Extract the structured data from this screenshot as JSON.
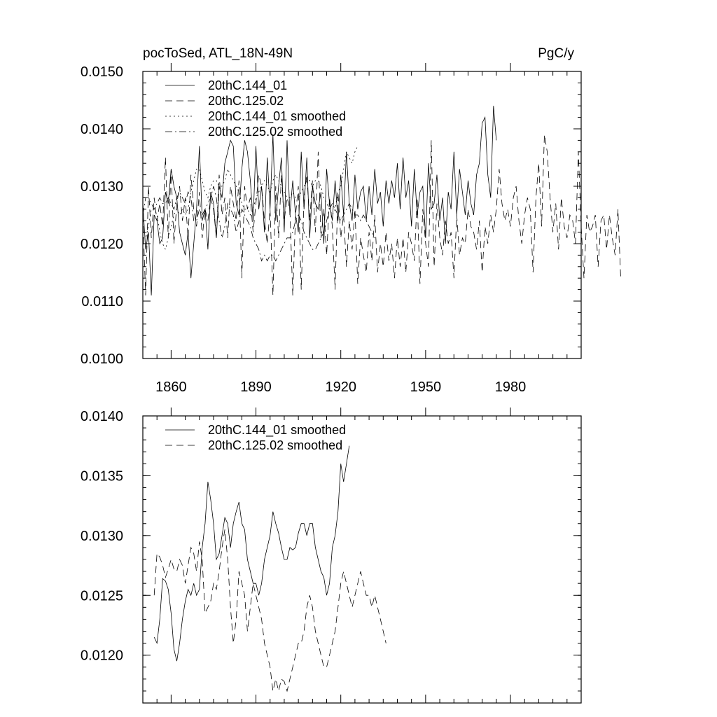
{
  "chart_data": [
    {
      "type": "line",
      "title_left": "pocToSed, ATL_18N-49N",
      "title_right": "PgC/y",
      "xlabel": "",
      "ylabel": "",
      "xlim": [
        1850,
        2005
      ],
      "ylim": [
        0.01,
        0.015
      ],
      "x_ticks": [
        1860,
        1890,
        1920,
        1950,
        1980
      ],
      "x_tick_labels": [
        "1860",
        "1890",
        "1920",
        "1950",
        "1980"
      ],
      "y_ticks": [
        0.01,
        0.011,
        0.012,
        0.013,
        0.014,
        0.015
      ],
      "y_tick_labels": [
        "0.0100",
        "0.0110",
        "0.0120",
        "0.0130",
        "0.0140",
        "0.0150"
      ],
      "legend_position": "top-left",
      "series": [
        {
          "name": "20thC.144_01",
          "style": "solid",
          "x_start": 1850,
          "values": [
            0.0127,
            0.0119,
            0.0122,
            0.0111,
            0.0125,
            0.0124,
            0.012,
            0.0121,
            0.0129,
            0.0127,
            0.0133,
            0.013,
            0.0128,
            0.0122,
            0.012,
            0.0118,
            0.0122,
            0.0114,
            0.012,
            0.0126,
            0.0137,
            0.0124,
            0.0126,
            0.0119,
            0.0129,
            0.0127,
            0.0121,
            0.013,
            0.0128,
            0.0134,
            0.0136,
            0.0138,
            0.0137,
            0.0127,
            0.0125,
            0.0133,
            0.0138,
            0.0136,
            0.0131,
            0.0124,
            0.0137,
            0.0126,
            0.013,
            0.0122,
            0.0135,
            0.0126,
            0.0139,
            0.0124,
            0.013,
            0.0135,
            0.0122,
            0.0138,
            0.0125,
            0.0131,
            0.0125,
            0.0122,
            0.0136,
            0.0126,
            0.0135,
            0.0121,
            0.013,
            0.0127,
            0.0126,
            0.0129,
            0.012,
            0.0133,
            0.0127,
            0.0124,
            0.0131,
            0.0124,
            0.0132,
            0.0125,
            0.0136,
            0.0127,
            0.0124,
            0.0132,
            0.0126,
            0.0129,
            0.013,
            0.0124,
            0.013,
            0.0125,
            0.0133,
            0.0127,
            0.0129,
            0.0123,
            0.0131,
            0.0127,
            0.0131,
            0.0128,
            0.0134,
            0.0126,
            0.0135,
            0.0128,
            0.0131,
            0.0123,
            0.0133,
            0.0125,
            0.0129,
            0.013,
            0.0121,
            0.0134,
            0.0126,
            0.0127,
            0.0132,
            0.0124,
            0.0128,
            0.012,
            0.0129,
            0.0126,
            0.0136,
            0.0125,
            0.0133,
            0.0129,
            0.0125,
            0.0131,
            0.0127,
            0.0125,
            0.0132,
            0.0134,
            0.0141,
            0.0142,
            0.0132,
            0.0128,
            0.0144,
            0.0138
          ]
        },
        {
          "name": "20thC.125.02",
          "style": "dashed",
          "x_start": 1850,
          "values": [
            0.0125,
            0.0111,
            0.013,
            0.0121,
            0.0128,
            0.0124,
            0.0127,
            0.0123,
            0.0135,
            0.0121,
            0.0133,
            0.012,
            0.0127,
            0.013,
            0.0124,
            0.0128,
            0.0121,
            0.0132,
            0.0126,
            0.0123,
            0.0129,
            0.0121,
            0.0126,
            0.0124,
            0.0128,
            0.0126,
            0.0121,
            0.0132,
            0.0125,
            0.0128,
            0.0121,
            0.013,
            0.0127,
            0.0124,
            0.0131,
            0.0114,
            0.013,
            0.0126,
            0.0128,
            0.0122,
            0.0127,
            0.0132,
            0.013,
            0.0124,
            0.012,
            0.0126,
            0.0111,
            0.013,
            0.0121,
            0.0132,
            0.0124,
            0.0128,
            0.0126,
            0.0111,
            0.0125,
            0.013,
            0.0112,
            0.0128,
            0.0132,
            0.0124,
            0.0131,
            0.0122,
            0.0136,
            0.0121,
            0.0126,
            0.0118,
            0.0128,
            0.0123,
            0.0112,
            0.0129,
            0.0121,
            0.0125,
            0.0116,
            0.0124,
            0.0119,
            0.0126,
            0.0113,
            0.0121,
            0.0118,
            0.0115,
            0.0122,
            0.0117,
            0.0125,
            0.0115,
            0.012,
            0.0116,
            0.0122,
            0.0117,
            0.012,
            0.0114,
            0.0121,
            0.0116,
            0.0121,
            0.0115,
            0.0122,
            0.012,
            0.0117,
            0.0128,
            0.0113,
            0.0126,
            0.012,
            0.0116,
            0.0138,
            0.0116,
            0.0127,
            0.0121,
            0.0118,
            0.0124,
            0.012,
            0.0122,
            0.0114,
            0.0125,
            0.0118,
            0.0121,
            0.012,
            0.0126,
            0.0123,
            0.0122,
            0.0119,
            0.0124,
            0.0115,
            0.0123,
            0.012,
            0.0125,
            0.0122,
            0.0126,
            0.0133,
            0.0127,
            0.0124,
            0.0126,
            0.0123,
            0.0128,
            0.013,
            0.0124,
            0.012,
            0.0125,
            0.0128,
            0.0126,
            0.0115,
            0.0128,
            0.0134,
            0.0123,
            0.0139,
            0.0136,
            0.0128,
            0.0122,
            0.0127,
            0.0119,
            0.0128,
            0.0123,
            0.0121,
            0.0125,
            0.0124,
            0.012,
            0.0136,
            0.0123,
            0.0114,
            0.0125,
            0.0122,
            0.0123,
            0.0125,
            0.0116,
            0.0124,
            0.0125,
            0.0119,
            0.0125,
            0.0121,
            0.0118,
            0.0126,
            0.0114
          ]
        },
        {
          "name": "20thC.144_01 smoothed",
          "style": "dotted",
          "x_start": 1850,
          "values": [
            0.0121,
            0.0121,
            0.0123,
            0.0126,
            0.0126,
            0.0125,
            0.0122,
            0.012,
            0.0119,
            0.0121,
            0.0123,
            0.0125,
            0.0126,
            0.0125,
            0.0126,
            0.0125,
            0.0126,
            0.0129,
            0.0131,
            0.0133,
            0.0133,
            0.0131,
            0.0129,
            0.0128,
            0.013,
            0.0131,
            0.0131,
            0.013,
            0.013,
            0.0131,
            0.0133,
            0.0132,
            0.0131,
            0.013,
            0.0129,
            0.0127,
            0.0126,
            0.0126,
            0.0125,
            0.0126,
            0.0128,
            0.0129,
            0.013,
            0.0131,
            0.013,
            0.0129,
            0.0131,
            0.0132,
            0.0131,
            0.013,
            0.0129,
            0.0128,
            0.0128,
            0.0129,
            0.0128,
            0.0128,
            0.0129,
            0.013,
            0.0131,
            0.0131,
            0.013,
            0.0131,
            0.0131,
            0.013,
            0.0128,
            0.0127,
            0.0126,
            0.0125,
            0.0126,
            0.0129,
            0.013,
            0.0133,
            0.0136,
            0.0135,
            0.0134,
            0.0136,
            0.0137
          ]
        },
        {
          "name": "20thC.125.02 smoothed",
          "style": "dashdot",
          "x_start": 1850,
          "values": [
            0.0125,
            0.0128,
            0.0128,
            0.0127,
            0.0126,
            0.0127,
            0.0128,
            0.0127,
            0.0127,
            0.0128,
            0.0127,
            0.0126,
            0.0128,
            0.0129,
            0.0128,
            0.0127,
            0.0129,
            0.0128,
            0.0124,
            0.0124,
            0.0126,
            0.0125,
            0.0126,
            0.0127,
            0.0128,
            0.013,
            0.0128,
            0.0124,
            0.0121,
            0.0123,
            0.0127,
            0.0126,
            0.0125,
            0.0122,
            0.0124,
            0.0126,
            0.0125,
            0.0124,
            0.0123,
            0.0121,
            0.012,
            0.0119,
            0.0117,
            0.0118,
            0.0117,
            0.0118,
            0.0118,
            0.0117,
            0.0118,
            0.0119,
            0.012,
            0.0121,
            0.0121,
            0.0122,
            0.0124,
            0.0125,
            0.0124,
            0.0122,
            0.0121,
            0.012,
            0.0119,
            0.0119,
            0.012,
            0.0121,
            0.0122,
            0.0124,
            0.0126,
            0.0127,
            0.0126,
            0.0125,
            0.0124,
            0.0125,
            0.0126,
            0.0127,
            0.0126,
            0.0125,
            0.0125,
            0.0124,
            0.0125,
            0.0124,
            0.0123,
            0.0122,
            0.0121
          ]
        }
      ]
    },
    {
      "type": "line",
      "title": "",
      "xlabel": "",
      "ylabel": "",
      "xlim": [
        1850,
        2005
      ],
      "ylim": [
        0.0116,
        0.014
      ],
      "x_ticks": [
        1860,
        1890,
        1920,
        1950,
        1980
      ],
      "x_tick_labels": [],
      "y_ticks": [
        0.012,
        0.0125,
        0.013,
        0.0135,
        0.014
      ],
      "y_tick_labels": [
        "0.0120",
        "0.0125",
        "0.0130",
        "0.0135",
        "0.0140"
      ],
      "legend_position": "top-left",
      "series": [
        {
          "name": "20thC.144_01 smoothed",
          "style": "solid",
          "x_start": 1854,
          "values": [
            0.01215,
            0.0121,
            0.0123,
            0.01264,
            0.01262,
            0.01255,
            0.01235,
            0.01205,
            0.01195,
            0.0121,
            0.0123,
            0.01245,
            0.01255,
            0.0125,
            0.0126,
            0.0125,
            0.01255,
            0.0129,
            0.0131,
            0.01345,
            0.0133,
            0.0131,
            0.0128,
            0.01285,
            0.013,
            0.01315,
            0.0131,
            0.0129,
            0.0131,
            0.0132,
            0.01328,
            0.0131,
            0.01305,
            0.0128,
            0.0127,
            0.0126,
            0.0126,
            0.0125,
            0.0126,
            0.0128,
            0.0129,
            0.013,
            0.0132,
            0.0131,
            0.01302,
            0.0129,
            0.0128,
            0.0128,
            0.0129,
            0.01288,
            0.0129,
            0.01302,
            0.0131,
            0.0131,
            0.013,
            0.0131,
            0.0131,
            0.0129,
            0.0128,
            0.0127,
            0.01265,
            0.0125,
            0.0126,
            0.0129,
            0.013,
            0.0132,
            0.0136,
            0.01345,
            0.0136,
            0.01375
          ]
        },
        {
          "name": "20thC.125.02 smoothed",
          "style": "dashed",
          "x_start": 1854,
          "values": [
            0.0125,
            0.01285,
            0.01282,
            0.01275,
            0.01265,
            0.01272,
            0.0128,
            0.01272,
            0.0127,
            0.0128,
            0.01275,
            0.0126,
            0.01275,
            0.0129,
            0.01285,
            0.0127,
            0.01295,
            0.0128,
            0.01235,
            0.0124,
            0.01245,
            0.0126,
            0.01255,
            0.0127,
            0.0129,
            0.01305,
            0.0128,
            0.0124,
            0.0121,
            0.0123,
            0.0127,
            0.0126,
            0.0125,
            0.0122,
            0.0124,
            0.0126,
            0.0125,
            0.0124,
            0.0123,
            0.0121,
            0.012,
            0.0119,
            0.0117,
            0.0118,
            0.0117,
            0.0118,
            0.01178,
            0.0117,
            0.0118,
            0.0119,
            0.012,
            0.0121,
            0.0121,
            0.0122,
            0.0124,
            0.0125,
            0.0124,
            0.0122,
            0.0121,
            0.012,
            0.0119,
            0.0119,
            0.012,
            0.0121,
            0.0122,
            0.0124,
            0.0126,
            0.0127,
            0.0126,
            0.0125,
            0.0124,
            0.0125,
            0.0126,
            0.0127,
            0.0126,
            0.0125,
            0.0125,
            0.0124,
            0.0125,
            0.0124,
            0.0123,
            0.0122,
            0.0121
          ]
        }
      ]
    }
  ]
}
